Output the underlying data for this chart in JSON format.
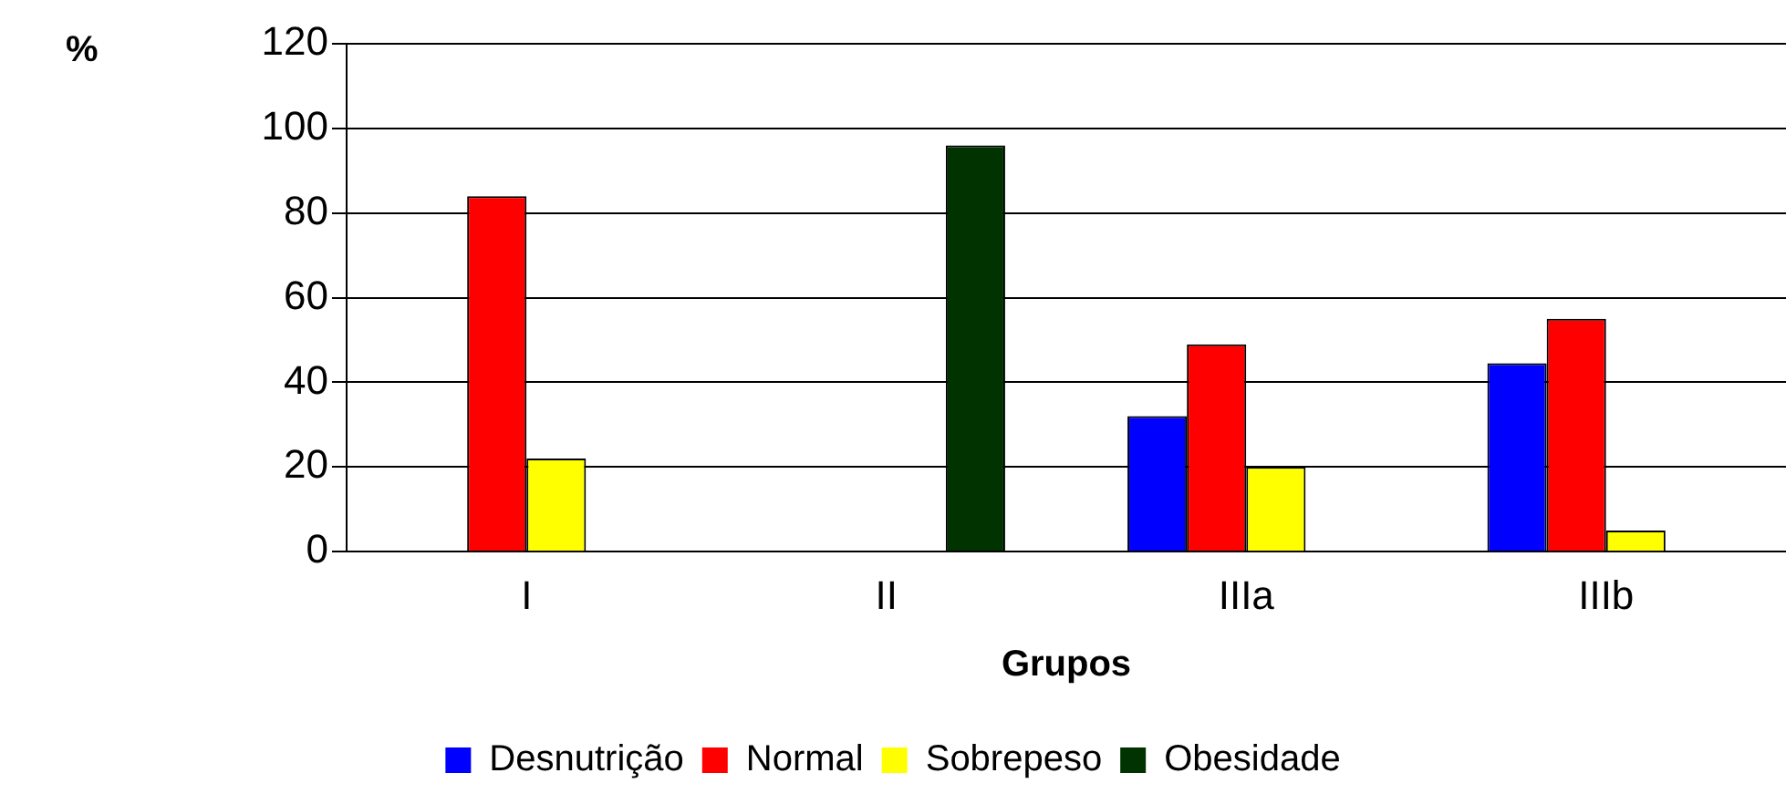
{
  "chart_data": {
    "type": "bar",
    "xlabel": "Grupos",
    "ylabel": "%",
    "categories": [
      "I",
      "II",
      "IIIa",
      "IIIb"
    ],
    "series": [
      {
        "name": "Desnutrição",
        "color": "#0000ff",
        "values": [
          null,
          null,
          32,
          44.5
        ]
      },
      {
        "name": "Normal",
        "color": "#ff0000",
        "values": [
          84,
          null,
          49,
          55
        ]
      },
      {
        "name": "Sobrepeso",
        "color": "#ffff00",
        "values": [
          22,
          null,
          20,
          5
        ]
      },
      {
        "name": "Obesidade",
        "color": "#003300",
        "values": [
          null,
          96,
          null,
          null
        ]
      }
    ],
    "ylim": [
      0,
      120
    ],
    "yticks": [
      0,
      20,
      40,
      60,
      80,
      100,
      120
    ],
    "grid": "y",
    "legend": "bottom"
  }
}
